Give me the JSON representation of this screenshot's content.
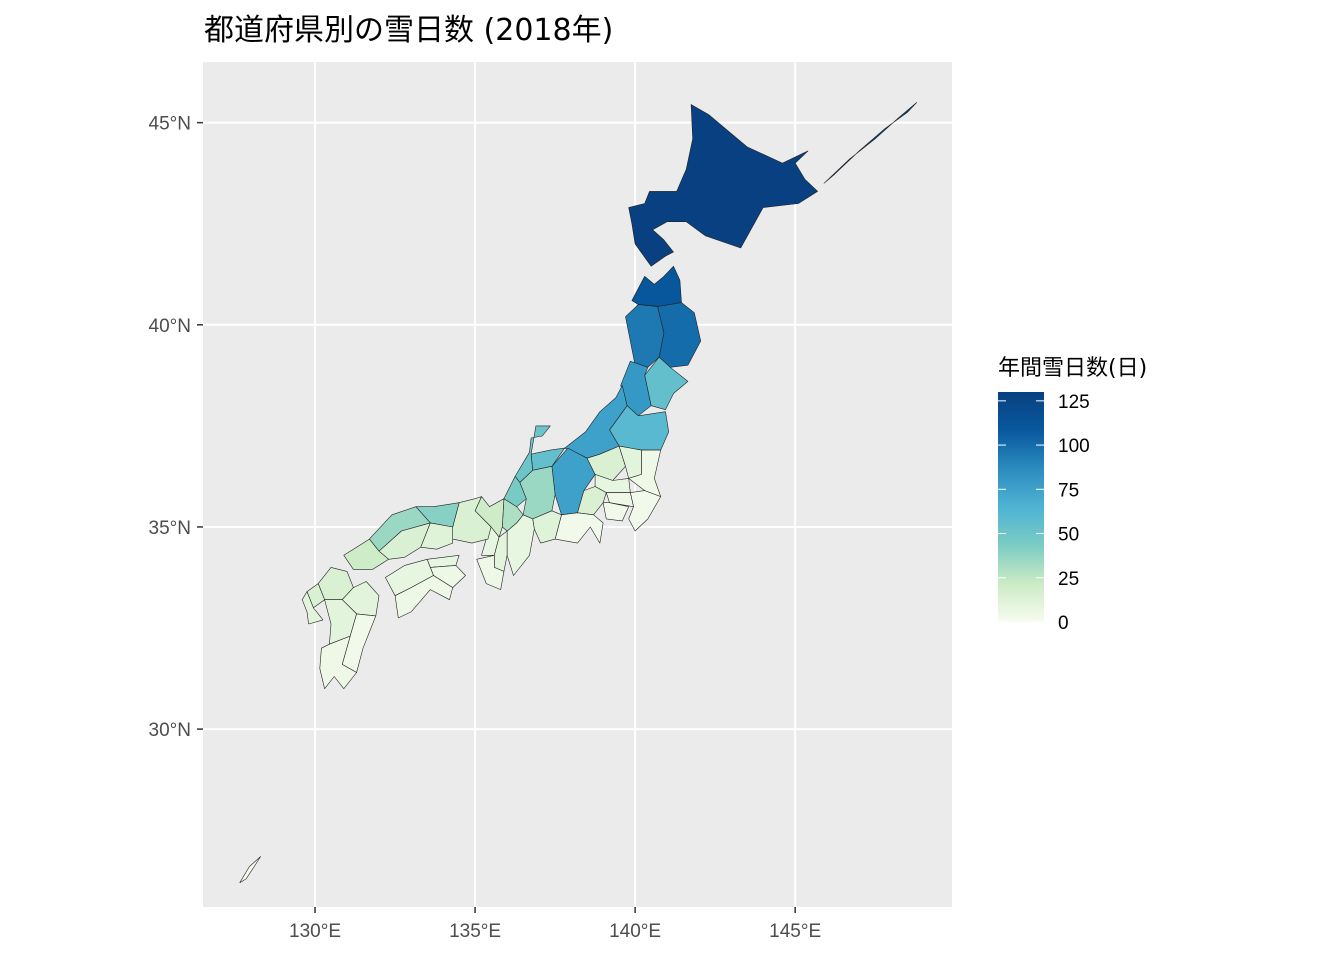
{
  "chart_data": {
    "type": "choropleth",
    "title": "都道府県別の雪日数 (2018年)",
    "xlabel": "",
    "ylabel": "",
    "x_ticks": [
      "130°E",
      "135°E",
      "140°E",
      "145°E"
    ],
    "y_ticks": [
      "30°N",
      "35°N",
      "40°N",
      "45°N"
    ],
    "x_tick_values": [
      130,
      135,
      140,
      145
    ],
    "y_tick_values": [
      30,
      35,
      40,
      45
    ],
    "xlim": [
      126.5,
      149.9
    ],
    "ylim": [
      25.6,
      46.5
    ],
    "grid": true,
    "legend": {
      "title": "年間雪日数(日)",
      "position": "right",
      "ticks": [
        "125",
        "100",
        "75",
        "50",
        "25",
        "0"
      ],
      "tick_values": [
        125,
        100,
        75,
        50,
        25,
        0
      ],
      "range": [
        0,
        130
      ],
      "palette": "GnBu",
      "colors": [
        "#f7fcf0",
        "#ccebc5",
        "#7bccc4",
        "#4eb3d3",
        "#2b8cbe",
        "#08589e",
        "#084081"
      ]
    },
    "regions": [
      {
        "name": "北海道",
        "value": 130
      },
      {
        "name": "青森",
        "value": 110
      },
      {
        "name": "岩手",
        "value": 100
      },
      {
        "name": "秋田",
        "value": 95
      },
      {
        "name": "宮城",
        "value": 55
      },
      {
        "name": "山形",
        "value": 80
      },
      {
        "name": "福島",
        "value": 60
      },
      {
        "name": "新潟",
        "value": 75
      },
      {
        "name": "長野",
        "value": 75
      },
      {
        "name": "富山",
        "value": 55
      },
      {
        "name": "石川",
        "value": 50
      },
      {
        "name": "福井",
        "value": 45
      },
      {
        "name": "岐阜",
        "value": 35
      },
      {
        "name": "群馬",
        "value": 15
      },
      {
        "name": "栃木",
        "value": 10
      },
      {
        "name": "茨城",
        "value": 5
      },
      {
        "name": "埼玉",
        "value": 8
      },
      {
        "name": "千葉",
        "value": 3
      },
      {
        "name": "東京",
        "value": 5
      },
      {
        "name": "神奈川",
        "value": 3
      },
      {
        "name": "山梨",
        "value": 15
      },
      {
        "name": "静岡",
        "value": 3
      },
      {
        "name": "愛知",
        "value": 12
      },
      {
        "name": "三重",
        "value": 8
      },
      {
        "name": "滋賀",
        "value": 30
      },
      {
        "name": "京都",
        "value": 20
      },
      {
        "name": "大阪",
        "value": 8
      },
      {
        "name": "兵庫",
        "value": 15
      },
      {
        "name": "奈良",
        "value": 10
      },
      {
        "name": "和歌山",
        "value": 5
      },
      {
        "name": "鳥取",
        "value": 40
      },
      {
        "name": "島根",
        "value": 35
      },
      {
        "name": "岡山",
        "value": 12
      },
      {
        "name": "広島",
        "value": 15
      },
      {
        "name": "山口",
        "value": 20
      },
      {
        "name": "徳島",
        "value": 5
      },
      {
        "name": "香川",
        "value": 8
      },
      {
        "name": "愛媛",
        "value": 8
      },
      {
        "name": "高知",
        "value": 5
      },
      {
        "name": "福岡",
        "value": 15
      },
      {
        "name": "佐賀",
        "value": 15
      },
      {
        "name": "長崎",
        "value": 10
      },
      {
        "name": "熊本",
        "value": 10
      },
      {
        "name": "大分",
        "value": 10
      },
      {
        "name": "宮崎",
        "value": 3
      },
      {
        "name": "鹿児島",
        "value": 5
      },
      {
        "name": "沖縄",
        "value": 0
      }
    ]
  }
}
